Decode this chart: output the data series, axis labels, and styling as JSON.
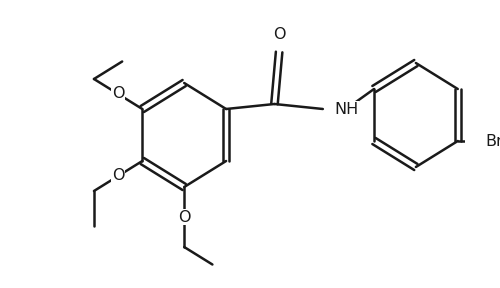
{
  "bg_color": "#ffffff",
  "line_color": "#1a1a1a",
  "line_width": 1.8,
  "font_size": 11.5,
  "fig_w": 5.0,
  "fig_h": 2.88,
  "dpi": 100,
  "xlim": [
    0,
    500
  ],
  "ylim": [
    0,
    288
  ]
}
